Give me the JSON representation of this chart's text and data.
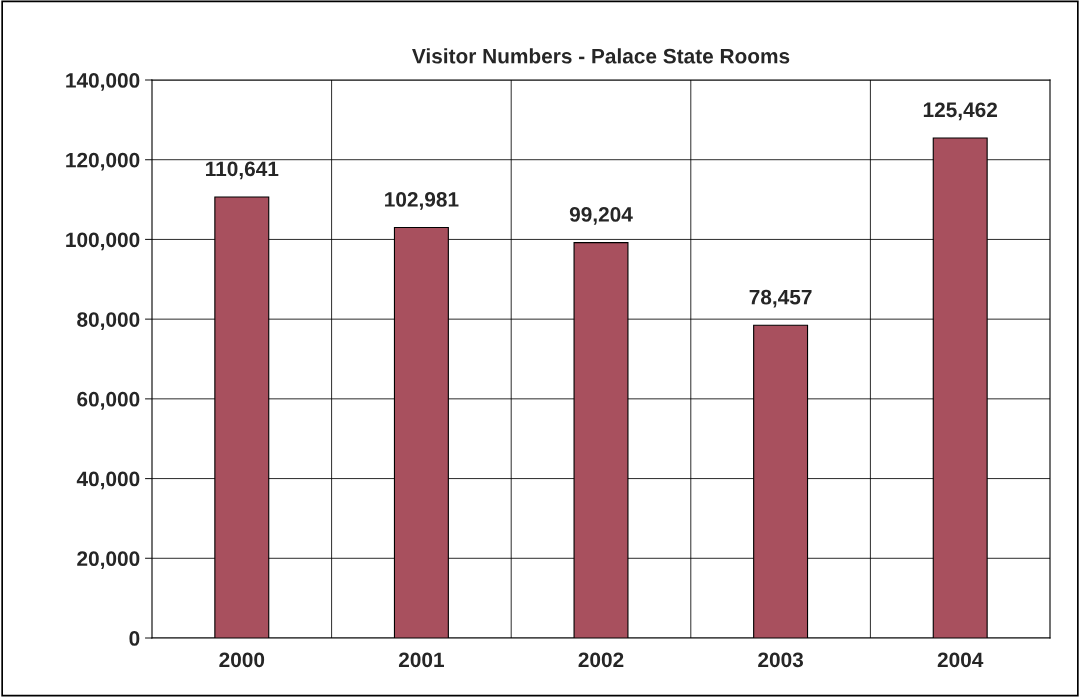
{
  "chart_data": {
    "type": "bar",
    "title": "Visitor Numbers - Palace State Rooms",
    "categories": [
      "2000",
      "2001",
      "2002",
      "2003",
      "2004"
    ],
    "values": [
      110641,
      102981,
      99204,
      78457,
      125462
    ],
    "color": "#a8505e",
    "ylim": [
      0,
      140000
    ],
    "yticks": [
      {
        "value": 0,
        "label": "0"
      },
      {
        "value": 20000,
        "label": "20,000"
      },
      {
        "value": 40000,
        "label": "40,000"
      },
      {
        "value": 60000,
        "label": "60,000"
      },
      {
        "value": 80000,
        "label": "80,000"
      },
      {
        "value": 100000,
        "label": "100,000"
      },
      {
        "value": 120000,
        "label": "120,000"
      },
      {
        "value": 140000,
        "label": "140,000"
      }
    ],
    "value_labels": [
      "110,641",
      "102,981",
      "99,204",
      "78,457",
      "125,462"
    ],
    "grid": true,
    "legend": false
  }
}
